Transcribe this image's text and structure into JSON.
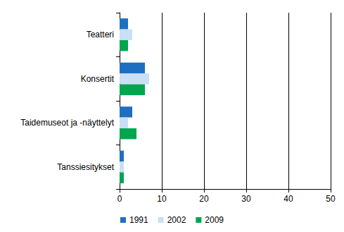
{
  "chart_data": {
    "type": "bar",
    "orientation": "horizontal",
    "categories": [
      "Teatteri",
      "Konsertit",
      "Taidemuseot ja -näyttelyt",
      "Tanssiesitykset"
    ],
    "series": [
      {
        "name": "1991",
        "color": "#1f6fc0",
        "values": [
          2,
          6,
          3,
          1
        ]
      },
      {
        "name": "2002",
        "color": "#c9dff5",
        "values": [
          3,
          7,
          2,
          1
        ]
      },
      {
        "name": "2009",
        "color": "#00a550",
        "values": [
          2,
          6,
          4,
          1
        ]
      }
    ],
    "xlim": [
      0,
      50
    ],
    "xticks": [
      0,
      10,
      20,
      30,
      40,
      50
    ],
    "grid": true,
    "legend": "bottom"
  }
}
